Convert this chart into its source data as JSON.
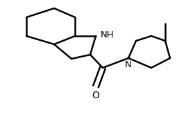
{
  "background_color": "#ffffff",
  "line_color": "#000000",
  "line_width": 1.8,
  "label_NH": {
    "text": "NH",
    "fontsize": 9.5
  },
  "label_N": {
    "text": "N",
    "fontsize": 9.5
  },
  "label_O": {
    "text": "O",
    "fontsize": 10
  }
}
